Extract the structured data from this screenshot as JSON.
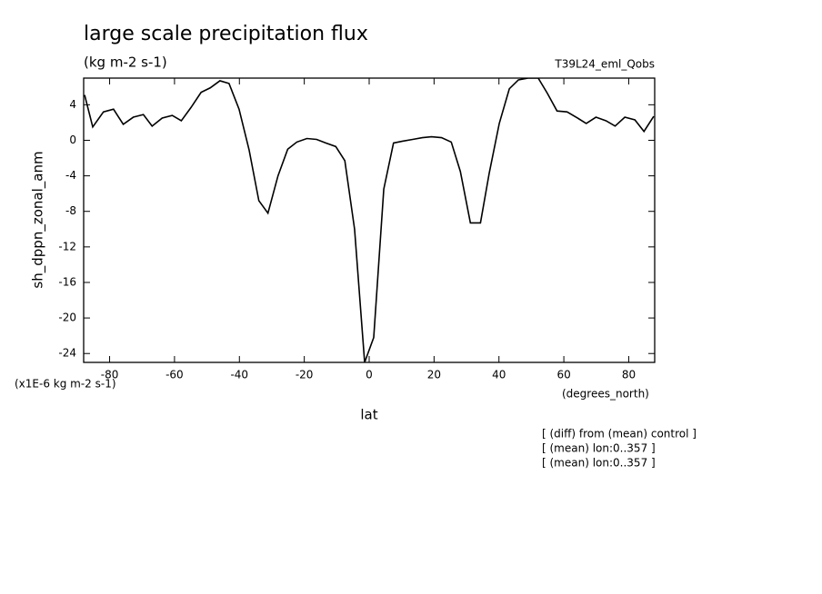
{
  "chart_data": {
    "type": "line",
    "title": "large scale precipitation flux",
    "subtitle": "(kg m-2 s-1)",
    "run_label": "T39L24_eml_Qobs",
    "y_label": "sh_dppn_zonal_anm",
    "y_unit": "(x1E-6 kg m-2 s-1)",
    "x_unit": "(degrees_north)",
    "x_label": "lat",
    "notes": [
      "[ (diff) from (mean) control ]",
      "[ (mean) lon:0..357 ]",
      "[ (mean) lon:0..357 ]"
    ],
    "x": [
      -87.7,
      -85.2,
      -81.9,
      -78.8,
      -75.8,
      -72.7,
      -69.6,
      -66.9,
      -63.8,
      -60.7,
      -57.9,
      -54.9,
      -51.8,
      -49.0,
      -46.0,
      -43.2,
      -40.1,
      -37.0,
      -34.0,
      -31.2,
      -28.1,
      -25.1,
      -22.3,
      -19.2,
      -16.2,
      -13.4,
      -10.3,
      -7.5,
      -4.5,
      -1.4,
      1.4,
      4.5,
      7.5,
      10.3,
      13.4,
      16.4,
      19.2,
      22.3,
      25.3,
      28.1,
      31.2,
      34.3,
      37.0,
      40.1,
      43.2,
      46.0,
      49.0,
      52.1,
      54.9,
      57.9,
      61.0,
      63.8,
      66.9,
      69.9,
      73.0,
      75.8,
      78.8,
      81.9,
      84.7,
      87.7
    ],
    "series": [
      {
        "name": "sh_dppn_zonal_anm",
        "color": "#000000",
        "values": [
          5.1,
          1.5,
          3.2,
          3.5,
          1.8,
          2.6,
          2.9,
          1.6,
          2.5,
          2.8,
          2.2,
          3.7,
          5.4,
          5.9,
          6.7,
          6.4,
          3.5,
          -1.1,
          -6.8,
          -8.2,
          -4.0,
          -1.0,
          -0.2,
          0.2,
          0.1,
          -0.3,
          -0.7,
          -2.3,
          -10.0,
          -25.0,
          -22.2,
          -5.5,
          -0.3,
          -0.1,
          0.1,
          0.3,
          0.4,
          0.3,
          -0.2,
          -3.5,
          -9.3,
          -9.3,
          -3.7,
          1.9,
          5.8,
          6.8,
          7.0,
          7.0,
          5.3,
          3.3,
          3.2,
          2.6,
          1.9,
          2.6,
          2.2,
          1.6,
          2.6,
          2.3,
          1.0,
          2.7
        ]
      }
    ],
    "xlim": [
      -88,
      88
    ],
    "xticks": [
      -80,
      -60,
      -40,
      -20,
      0,
      20,
      40,
      60,
      80
    ],
    "ylim": [
      -25,
      7
    ],
    "yticks": [
      4,
      0,
      -4,
      -8,
      -12,
      -16,
      -20,
      -24
    ]
  }
}
